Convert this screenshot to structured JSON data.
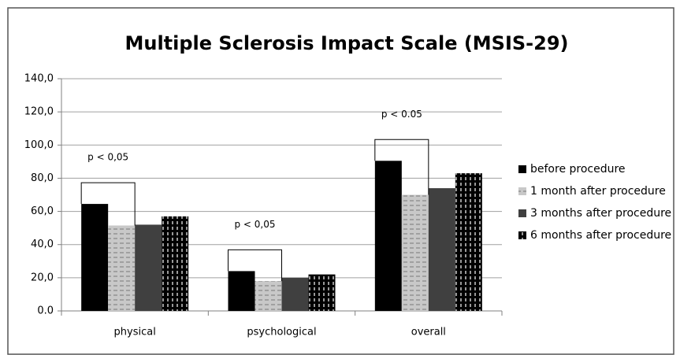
{
  "chart_data": {
    "type": "bar",
    "title": "Multiple Sclerosis Impact Scale (MSIS-29)",
    "categories": [
      "physical",
      "psychological",
      "overall"
    ],
    "series": [
      {
        "name": "before procedure",
        "color": "#000000",
        "values": [
          64.5,
          24,
          90.5
        ]
      },
      {
        "name": "1 month after procedure",
        "color": "#c8c8c8",
        "values": [
          51.5,
          18,
          70
        ]
      },
      {
        "name": "3 months after procedure",
        "color": "#404040",
        "values": [
          52,
          20,
          74
        ]
      },
      {
        "name": "6 months after procedure",
        "color": "#000000",
        "values": [
          57,
          22,
          83
        ]
      }
    ],
    "annotations": [
      "p < 0,05",
      "p < 0,05",
      "p < 0.05"
    ],
    "ylim": [
      0,
      140
    ],
    "yticks": [
      {
        "value": 0,
        "label": "0.0"
      },
      {
        "value": 20,
        "label": "20,0"
      },
      {
        "value": 40,
        "label": "40,0"
      },
      {
        "value": 60,
        "label": "60,0"
      },
      {
        "value": 80,
        "label": "80,0"
      },
      {
        "value": 100,
        "label": "100,0"
      },
      {
        "value": 120,
        "label": "120,0"
      },
      {
        "value": 140,
        "label": "140,0"
      }
    ],
    "grid": true,
    "legend": "right"
  }
}
